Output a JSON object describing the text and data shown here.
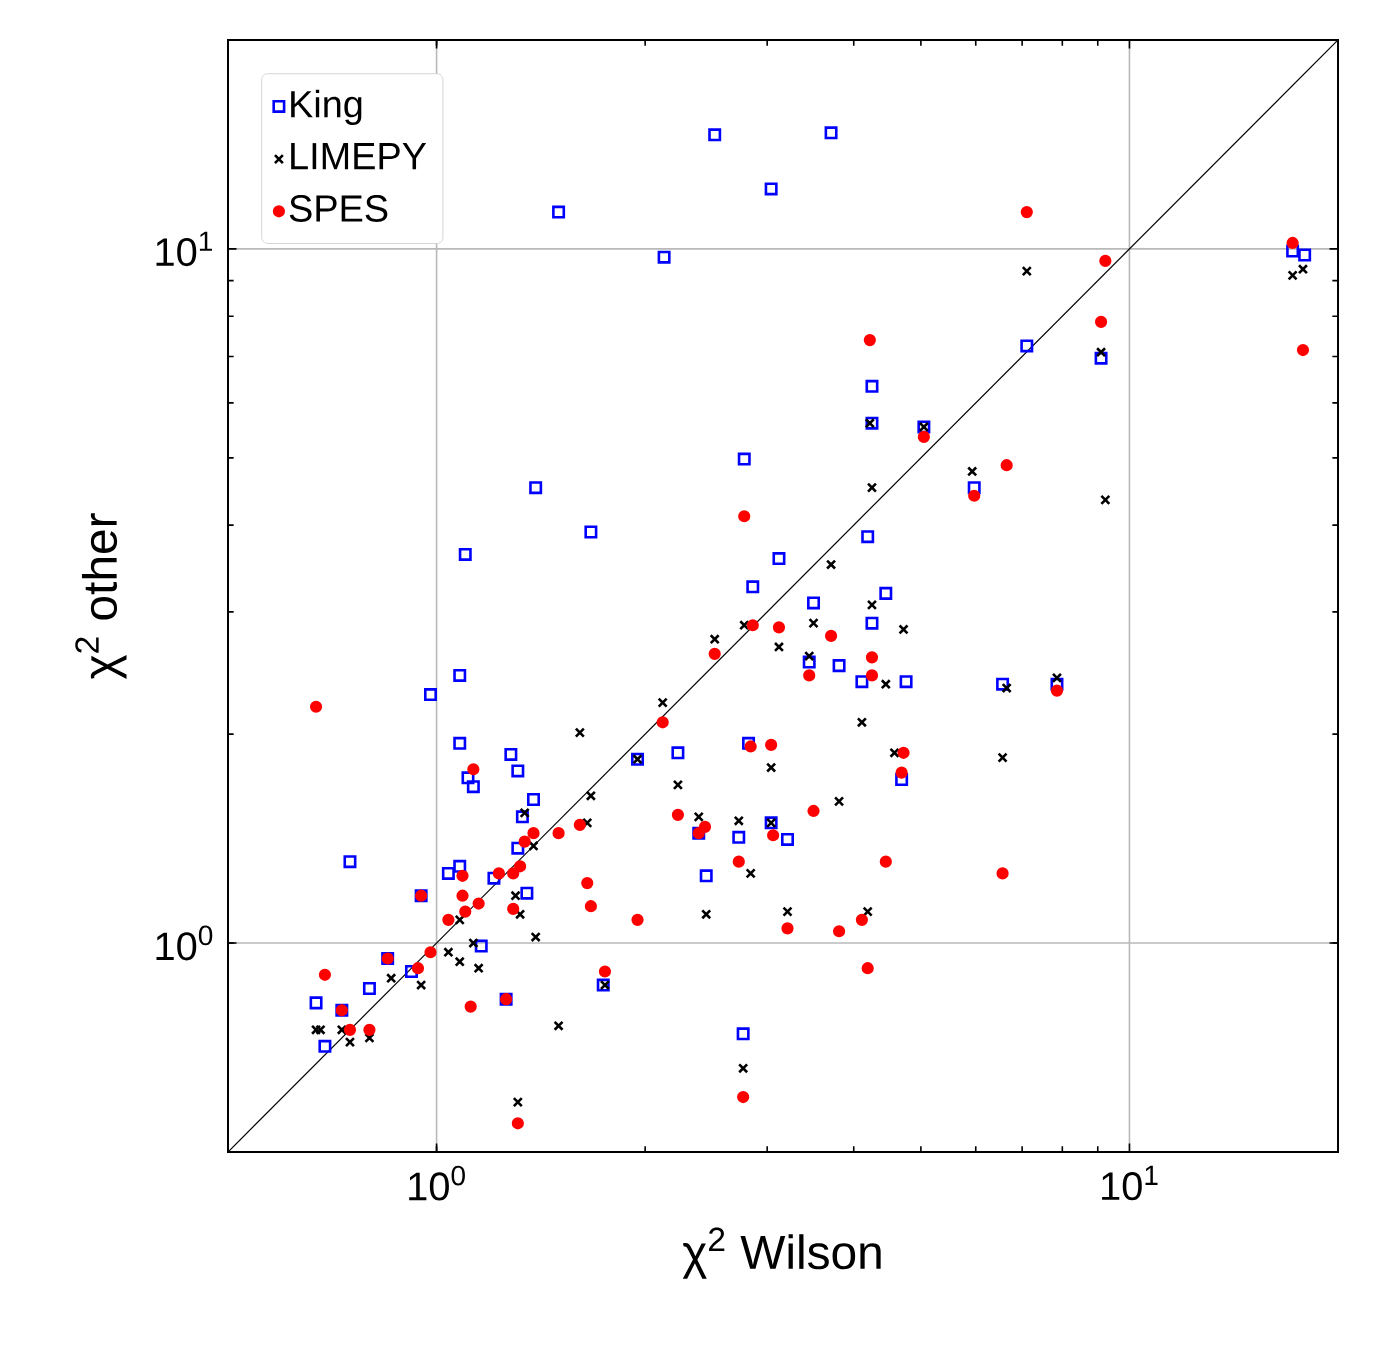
{
  "chart_data": {
    "type": "scatter",
    "xlabel": "χ$^{2}$ Wilson",
    "ylabel": "χ$^{2}$ other",
    "log": "xy",
    "xlim": [
      0.5,
      20
    ],
    "ylim": [
      0.5,
      20
    ],
    "xticks": [
      {
        "value": 1,
        "label": "10$^{0}$"
      },
      {
        "value": 10,
        "label": "10$^{1}$"
      }
    ],
    "yticks": [
      {
        "value": 1,
        "label": "10$^{0}$"
      },
      {
        "value": 10,
        "label": "10$^{1}$"
      }
    ],
    "grid": true,
    "legend": "top left",
    "series": [
      {
        "type": "line",
        "color": "#000000",
        "marker": "none",
        "x": [
          0.5,
          20
        ],
        "values": [
          0.5,
          20
        ]
      },
      {
        "name": "King",
        "color": "#0000ff",
        "marker": "square",
        "x": [
          0.67,
          0.69,
          0.73,
          0.8,
          0.85,
          0.92,
          0.95,
          0.75,
          0.98,
          1.08,
          1.08,
          1.11,
          1.13,
          1.28,
          1.31,
          1.38,
          1.33,
          1.31,
          1.08,
          1.04,
          1.21,
          1.35,
          1.16,
          1.26,
          1.74,
          1.39,
          1.67,
          1.1,
          1.5,
          2.52,
          3.71,
          3.04,
          2.13,
          4.25,
          4.25,
          5.05,
          5.97,
          2.78,
          4.19,
          3.12,
          2.86,
          4.45,
          3.5,
          4.25,
          3.45,
          3.81,
          4.11,
          4.76,
          2.23,
          2.82,
          1.95,
          2.39,
          2.73,
          3.04,
          3.21,
          2.45,
          4.69,
          2.77,
          7.11,
          9.1,
          17.2,
          17.9,
          6.56,
          7.86
        ],
        "values": [
          0.82,
          0.71,
          0.8,
          0.86,
          0.95,
          0.91,
          1.17,
          1.31,
          2.28,
          2.43,
          1.94,
          1.73,
          1.68,
          1.87,
          1.77,
          1.61,
          1.52,
          1.37,
          1.29,
          1.26,
          1.24,
          1.18,
          0.99,
          0.83,
          0.87,
          4.53,
          3.91,
          3.63,
          11.3,
          14.6,
          14.7,
          12.2,
          9.73,
          6.34,
          5.61,
          5.54,
          4.53,
          4.98,
          3.85,
          3.58,
          3.26,
          3.19,
          3.09,
          2.89,
          2.54,
          2.51,
          2.38,
          2.38,
          1.88,
          1.94,
          1.84,
          1.44,
          1.42,
          1.49,
          1.41,
          1.25,
          1.72,
          0.74,
          7.25,
          6.96,
          9.93,
          9.8,
          2.36,
          2.36
        ]
      },
      {
        "name": "LIMEPY",
        "color": "#000000",
        "marker": "cross",
        "x": [
          1.61,
          1.67,
          1.65,
          1.34,
          1.38,
          1.3,
          1.32,
          1.39,
          1.08,
          1.13,
          1.04,
          1.08,
          1.15,
          0.95,
          0.86,
          0.8,
          0.75,
          0.73,
          0.68,
          0.67,
          1.5,
          1.31,
          4.25,
          4.72,
          3.5,
          3.12,
          2.78,
          2.52,
          3.45,
          4.45,
          2.12,
          1.95,
          2.23,
          4.11,
          3.04,
          2.39,
          2.73,
          3.04,
          3.81,
          4.58,
          2.84,
          2.45,
          3.21,
          4.19,
          1.75,
          2.77,
          7.11,
          9.1,
          9.23,
          17.2,
          17.8,
          5.93,
          6.65,
          7.86,
          6.56,
          4.22,
          5.05,
          4.25,
          3.71
        ],
        "values": [
          2.01,
          1.63,
          1.49,
          1.54,
          1.38,
          1.17,
          1.1,
          1.02,
          1.08,
          1.0,
          0.97,
          0.94,
          0.92,
          0.87,
          0.89,
          0.73,
          0.72,
          0.75,
          0.75,
          0.75,
          0.76,
          0.59,
          3.07,
          2.83,
          2.89,
          2.67,
          2.87,
          2.74,
          2.59,
          2.36,
          2.22,
          1.84,
          1.69,
          2.08,
          1.79,
          1.52,
          1.5,
          1.49,
          1.6,
          1.88,
          1.26,
          1.1,
          1.11,
          1.11,
          0.87,
          0.66,
          9.29,
          7.1,
          4.35,
          9.16,
          9.35,
          4.78,
          2.33,
          2.41,
          1.85,
          5.61,
          5.54,
          4.53,
          3.51
        ]
      },
      {
        "name": "SPES",
        "color": "#ff0000",
        "marker": "circle",
        "x": [
          0.67,
          1.13,
          0.69,
          0.73,
          0.75,
          0.8,
          0.85,
          0.94,
          0.98,
          0.95,
          1.04,
          1.09,
          1.09,
          1.1,
          1.15,
          1.12,
          1.26,
          1.29,
          1.23,
          1.32,
          1.34,
          1.38,
          1.5,
          1.61,
          1.65,
          1.67,
          1.31,
          1.75,
          1.29,
          2.86,
          3.12,
          3.71,
          2.52,
          2.12,
          3.45,
          4.25,
          4.25,
          2.84,
          3.04,
          4.72,
          4.69,
          2.23,
          2.44,
          2.39,
          3.06,
          3.5,
          2.73,
          4.45,
          1.95,
          3.21,
          3.81,
          4.11,
          4.19,
          2.77,
          7.11,
          9.23,
          9.1,
          6.65,
          5.97,
          17.2,
          17.8,
          7.86,
          6.56,
          4.22,
          5.05,
          2.78
        ],
        "values": [
          2.19,
          1.78,
          0.9,
          0.8,
          0.75,
          0.75,
          0.95,
          0.92,
          0.97,
          1.17,
          1.08,
          1.25,
          1.17,
          1.11,
          1.14,
          0.81,
          0.83,
          1.12,
          1.26,
          1.29,
          1.4,
          1.44,
          1.44,
          1.48,
          1.22,
          1.13,
          0.55,
          0.91,
          1.26,
          2.87,
          2.85,
          2.77,
          2.61,
          2.08,
          2.43,
          2.58,
          2.43,
          1.92,
          1.93,
          1.88,
          1.76,
          1.53,
          1.47,
          1.44,
          1.43,
          1.55,
          1.31,
          1.31,
          1.08,
          1.05,
          1.04,
          1.08,
          0.92,
          0.6,
          11.3,
          9.61,
          7.85,
          4.88,
          4.41,
          10.2,
          7.15,
          2.31,
          1.26,
          7.39,
          5.36,
          4.12
        ]
      }
    ]
  }
}
